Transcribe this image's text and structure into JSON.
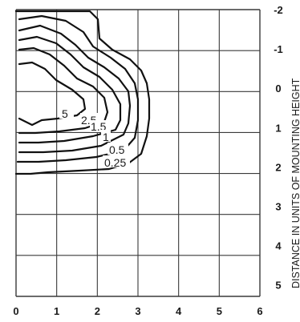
{
  "colors": {
    "grid": "#3a3a3a",
    "contour": "#111111",
    "text": "#1a1a1a",
    "background": "#ffffff"
  },
  "x_axis": {
    "ticks": [
      "0",
      "1",
      "2",
      "3",
      "4",
      "5",
      "6"
    ]
  },
  "y_axis": {
    "title": "DISTANCE IN UNITS OF MOUNTING HEIGHT",
    "ticks": [
      "-2",
      "-1",
      "0",
      "1",
      "2",
      "3",
      "4",
      "5"
    ]
  },
  "contours": {
    "labels": [
      "5",
      "2.5",
      "1.5",
      "1",
      "0.5",
      "0.25"
    ]
  },
  "grid": {
    "columns": 6,
    "rows": 7
  }
}
